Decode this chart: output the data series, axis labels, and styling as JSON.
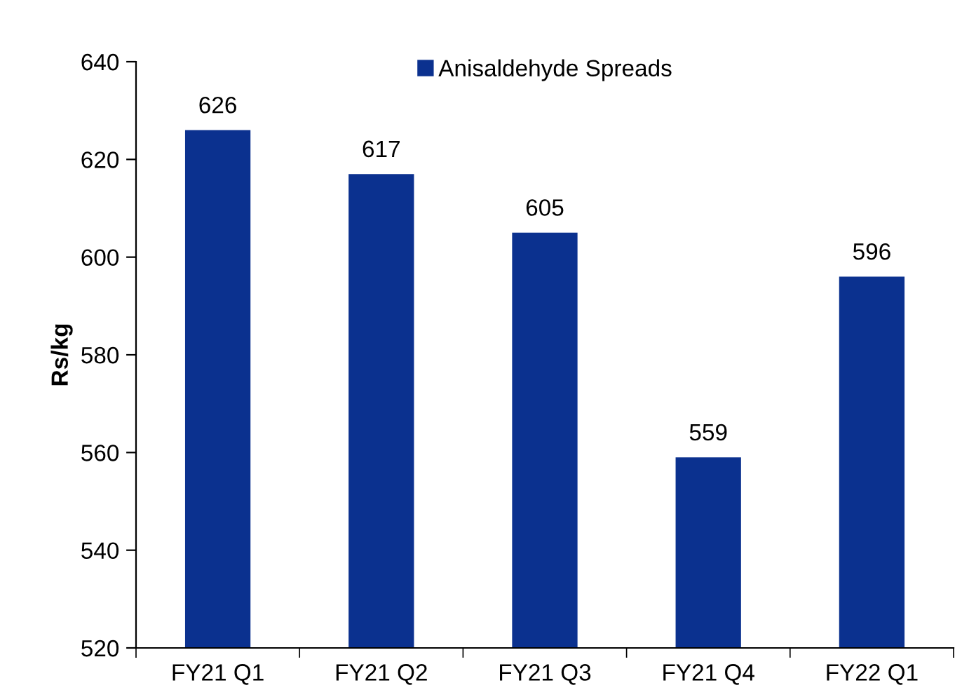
{
  "chart_data": {
    "type": "bar",
    "ylabel": "Rs/kg",
    "categories": [
      "FY21 Q1",
      "FY21 Q2",
      "FY21 Q3",
      "FY21 Q4",
      "FY22 Q1"
    ],
    "series": [
      {
        "name": "Anisaldehyde Spreads",
        "color": "#0b318f",
        "values": [
          626,
          617,
          605,
          559,
          596
        ]
      }
    ],
    "ylim": [
      520,
      640
    ],
    "yticks": [
      520,
      540,
      560,
      580,
      600,
      620,
      640
    ],
    "data_labels": true,
    "grid": false,
    "legend": "top"
  }
}
